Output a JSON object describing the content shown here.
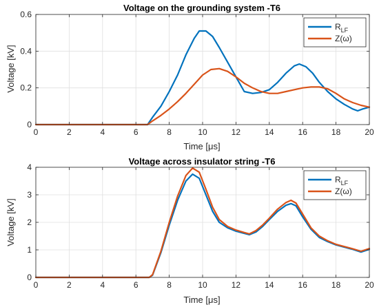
{
  "chart_data": [
    {
      "type": "line",
      "title": "Voltage on the grounding system -T6",
      "xlabel": "Time [μs]",
      "ylabel": "Voltage [kV]",
      "xlim": [
        0,
        20
      ],
      "ylim": [
        0,
        0.6
      ],
      "xticks": [
        "0",
        "2",
        "4",
        "6",
        "8",
        "10",
        "12",
        "14",
        "16",
        "18",
        "20"
      ],
      "yticks": [
        "0",
        "0.2",
        "0.4",
        "0.6"
      ],
      "grid": true,
      "legend_position": "top-right",
      "series": [
        {
          "name": "R",
          "name_sub": "LF",
          "color": "#0072BD",
          "x": [
            0,
            6.7,
            7.0,
            7.5,
            8.0,
            8.5,
            9.0,
            9.5,
            9.8,
            10.2,
            10.6,
            11.0,
            11.5,
            12.0,
            12.5,
            13.0,
            13.5,
            14.0,
            14.5,
            15.0,
            15.5,
            15.8,
            16.2,
            16.6,
            17.0,
            17.5,
            18.0,
            18.5,
            19.0,
            19.3,
            19.6,
            20.0
          ],
          "y": [
            0,
            0,
            0.04,
            0.1,
            0.18,
            0.27,
            0.38,
            0.47,
            0.51,
            0.51,
            0.48,
            0.42,
            0.34,
            0.26,
            0.18,
            0.17,
            0.175,
            0.19,
            0.23,
            0.28,
            0.32,
            0.33,
            0.315,
            0.28,
            0.23,
            0.18,
            0.14,
            0.11,
            0.085,
            0.075,
            0.085,
            0.095
          ]
        },
        {
          "name": "Z(ω)",
          "color": "#D95319",
          "x": [
            0,
            6.7,
            7.0,
            7.5,
            8.0,
            8.5,
            9.0,
            9.5,
            10.0,
            10.5,
            11.0,
            11.5,
            12.0,
            12.5,
            13.0,
            13.5,
            14.0,
            14.5,
            15.0,
            15.5,
            16.0,
            16.5,
            17.0,
            17.5,
            18.0,
            18.5,
            19.0,
            19.5,
            20.0
          ],
          "y": [
            0,
            0,
            0.02,
            0.05,
            0.085,
            0.125,
            0.17,
            0.22,
            0.27,
            0.3,
            0.305,
            0.29,
            0.26,
            0.225,
            0.2,
            0.18,
            0.17,
            0.17,
            0.18,
            0.19,
            0.2,
            0.205,
            0.205,
            0.195,
            0.17,
            0.14,
            0.12,
            0.105,
            0.095
          ]
        }
      ]
    },
    {
      "type": "line",
      "title": "Voltage across insulator string -T6",
      "xlabel": "Time [μs]",
      "ylabel": "Voltage [kV]",
      "xlim": [
        0,
        20
      ],
      "ylim": [
        0,
        4
      ],
      "xticks": [
        "0",
        "2",
        "4",
        "6",
        "8",
        "10",
        "12",
        "14",
        "16",
        "18",
        "20"
      ],
      "yticks": [
        "0",
        "1",
        "2",
        "3",
        "4"
      ],
      "grid": true,
      "legend_position": "top-right",
      "series": [
        {
          "name": "R",
          "name_sub": "LF",
          "color": "#0072BD",
          "x": [
            0,
            6.8,
            7.0,
            7.5,
            8.0,
            8.5,
            9.0,
            9.4,
            9.8,
            10.2,
            10.6,
            11.0,
            11.5,
            12.0,
            12.5,
            12.8,
            13.2,
            13.6,
            14.0,
            14.5,
            15.0,
            15.3,
            15.6,
            16.0,
            16.5,
            17.0,
            17.5,
            18.0,
            18.5,
            19.0,
            19.5,
            20.0
          ],
          "y": [
            0,
            0,
            0.08,
            0.9,
            1.9,
            2.8,
            3.5,
            3.75,
            3.6,
            3.0,
            2.4,
            2.0,
            1.8,
            1.68,
            1.6,
            1.55,
            1.65,
            1.85,
            2.1,
            2.4,
            2.62,
            2.68,
            2.6,
            2.2,
            1.75,
            1.45,
            1.3,
            1.18,
            1.1,
            1.02,
            0.92,
            1.02
          ]
        },
        {
          "name": "Z(ω)",
          "color": "#D95319",
          "x": [
            0,
            6.8,
            7.0,
            7.5,
            8.0,
            8.5,
            9.0,
            9.4,
            9.8,
            10.2,
            10.6,
            11.0,
            11.5,
            12.0,
            12.5,
            12.8,
            13.2,
            13.6,
            14.0,
            14.5,
            15.0,
            15.3,
            15.6,
            16.0,
            16.5,
            17.0,
            17.5,
            18.0,
            18.5,
            19.0,
            19.5,
            20.0
          ],
          "y": [
            0,
            0,
            0.1,
            0.95,
            2.0,
            2.95,
            3.7,
            3.97,
            3.82,
            3.2,
            2.55,
            2.1,
            1.85,
            1.72,
            1.63,
            1.58,
            1.7,
            1.9,
            2.15,
            2.48,
            2.72,
            2.8,
            2.7,
            2.3,
            1.8,
            1.5,
            1.33,
            1.2,
            1.12,
            1.04,
            0.95,
            1.05
          ]
        }
      ]
    }
  ]
}
